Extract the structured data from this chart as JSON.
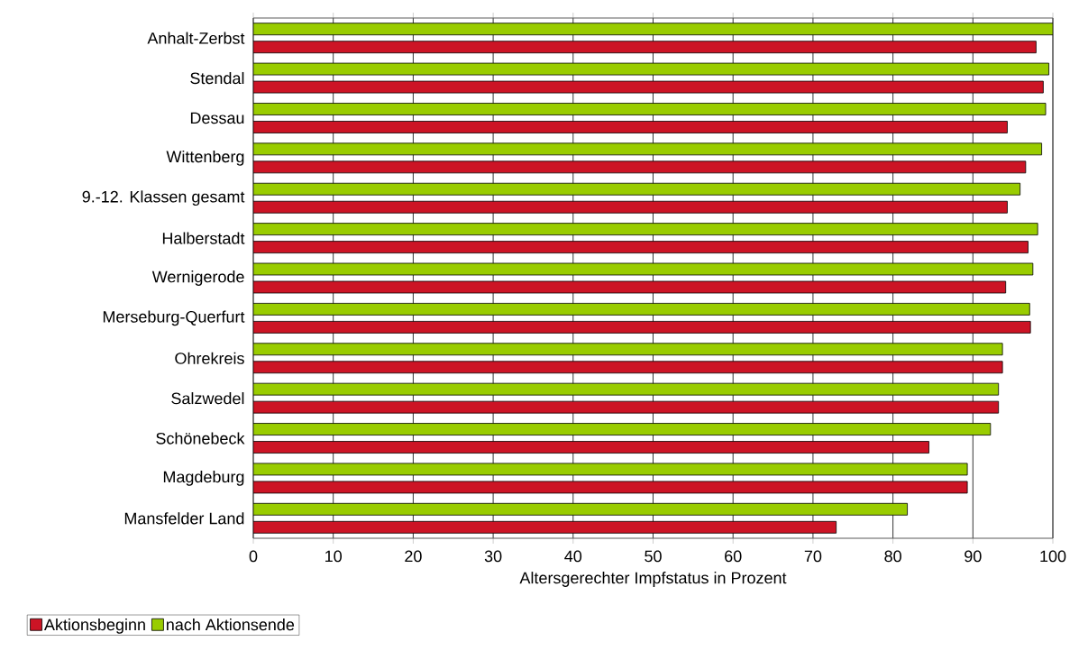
{
  "chart_data": {
    "type": "bar",
    "orientation": "horizontal",
    "xlabel": "Altersgerechter Impfstatus in Prozent",
    "categories": [
      "Anhalt-Zerbst",
      "Stendal",
      "Dessau",
      "Wittenberg",
      "9.-12. Klassen gesamt",
      "Halberstadt",
      "Wernigerode",
      "Merseburg-Querfurt",
      "Ohrekreis",
      "Salzwedel",
      "Schönebeck",
      "Magdeburg",
      "Mansfelder Land"
    ],
    "series": [
      {
        "name": "Aktionsbeginn",
        "color": "#cc1425",
        "values": [
          97.9,
          98.8,
          94.3,
          96.6,
          94.3,
          96.9,
          94.1,
          97.2,
          93.7,
          93.2,
          84.5,
          89.3,
          72.9
        ]
      },
      {
        "name": "nach Aktionsende",
        "color": "#99cc00",
        "values": [
          100,
          99.5,
          99.1,
          98.6,
          95.9,
          98.1,
          97.5,
          97.1,
          93.7,
          93.2,
          92.2,
          89.3,
          81.8
        ]
      }
    ],
    "xlim": [
      0,
      100
    ],
    "xticks": [
      0,
      10,
      20,
      30,
      40,
      50,
      60,
      70,
      80,
      90,
      100
    ],
    "grid": "x",
    "legend": "bottom left"
  }
}
